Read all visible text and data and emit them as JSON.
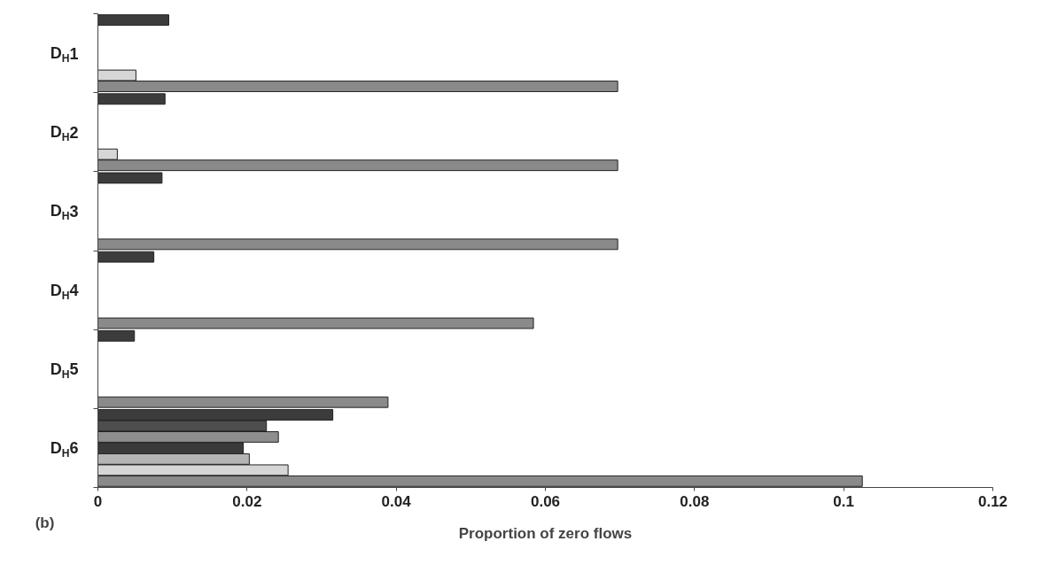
{
  "chart_data": {
    "type": "bar",
    "orientation": "horizontal",
    "categories": [
      "D$_{H}$1",
      "D$_{H}$2",
      "D$_{H}$3",
      "D$_{H}$4",
      "D$_{H}$5",
      "D$_{H}$6"
    ],
    "series": [
      {
        "color": "#3c3c3c",
        "values": [
          0.0095,
          0.009,
          0.0086,
          0.0075,
          0.0049,
          0.0315
        ]
      },
      {
        "color": "#4e4e4e",
        "values": [
          null,
          null,
          null,
          null,
          null,
          0.0226
        ]
      },
      {
        "color": "#8e8e8e",
        "values": [
          null,
          null,
          null,
          null,
          null,
          0.0242
        ]
      },
      {
        "color": "#3a3a3a",
        "values": [
          null,
          null,
          null,
          null,
          null,
          0.0195
        ]
      },
      {
        "color": "#b4b4b4",
        "values": [
          null,
          null,
          null,
          null,
          null,
          0.0203
        ]
      },
      {
        "color": "#d6d6d6",
        "values": [
          0.0051,
          0.0026,
          null,
          null,
          null,
          0.0255
        ]
      },
      {
        "color": "#8a8a8a",
        "values": [
          0.0697,
          0.0697,
          0.0697,
          0.0584,
          0.0389,
          0.1025
        ]
      }
    ],
    "xlabel": "Proportion of zero flows",
    "xlim": [
      0,
      0.12
    ],
    "xticks": [
      0,
      0.02,
      0.04,
      0.06,
      0.08,
      {
        "value": 0.1,
        "label": "0.1"
      },
      0.12
    ],
    "annotations": [
      "(b)"
    ],
    "grid": false
  }
}
